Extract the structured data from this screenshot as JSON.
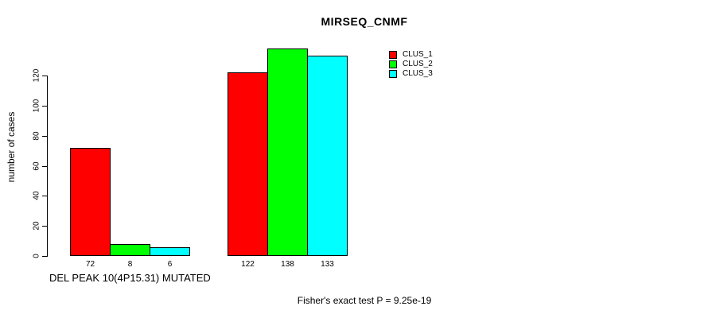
{
  "title": "MIRSEQ_CNMF",
  "footer": "Fisher's exact test P = 9.25e-19",
  "chart_data": {
    "type": "bar",
    "title": "MIRSEQ_CNMF",
    "ylabel": "number of cases",
    "xlabel": "DEL PEAK 10(4P15.31) MUTATED",
    "categories": [
      "DEL PEAK 10(4P15.31) MUTATED",
      ""
    ],
    "series": [
      {
        "name": "CLUS_1",
        "color": "#FF0000",
        "values": [
          72,
          122
        ]
      },
      {
        "name": "CLUS_2",
        "color": "#00FF00",
        "values": [
          8,
          138
        ]
      },
      {
        "name": "CLUS_3",
        "color": "#00FFFF",
        "values": [
          6,
          133
        ]
      }
    ],
    "bar_value_labels": [
      [
        "72",
        "8",
        "6"
      ],
      [
        "122",
        "138",
        "133"
      ]
    ],
    "yticks": [
      0,
      20,
      40,
      60,
      80,
      100,
      120
    ],
    "ylim": [
      0,
      140
    ],
    "grid": false,
    "legend_position": "top-right",
    "annotation": "Fisher's exact test P = 9.25e-19",
    "axis_color": "#000000",
    "background_color": "#FFFFFF"
  }
}
